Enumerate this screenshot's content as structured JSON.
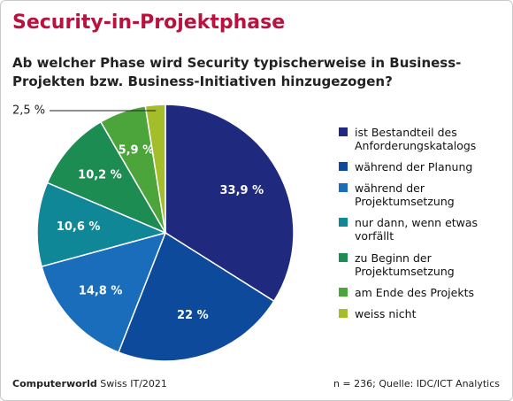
{
  "chart_data": {
    "type": "pie",
    "title": "Security-in-Projektphase",
    "subtitle": "Ab welcher Phase wird Security typischerweise in Business-Projekten bzw. Business-Initiativen hinzugezogen?",
    "categories": [
      "ist Bestandteil des Anforderungskatalogs",
      "während der Planung",
      "während der Projektumsetzung",
      "nur dann, wenn etwas vorfällt",
      "zu Beginn der Projektumsetzung",
      "am Ende des Projekts",
      "weiss nicht"
    ],
    "values": [
      33.9,
      22,
      14.8,
      10.6,
      10.2,
      5.9,
      2.5
    ],
    "value_labels": [
      "33,9 %",
      "22 %",
      "14,8 %",
      "10,6 %",
      "10,2 %",
      "5,9 %",
      "2,5 %"
    ],
    "colors": [
      "#1f2a7e",
      "#0e4a9b",
      "#1a6dbb",
      "#0f8797",
      "#1d8c52",
      "#4ca53b",
      "#a3bd2b"
    ],
    "footer_brand": "Computerworld",
    "footer_issue": "Swiss IT/2021",
    "note": "n = 236; Quelle: IDC/ICT Analytics"
  }
}
